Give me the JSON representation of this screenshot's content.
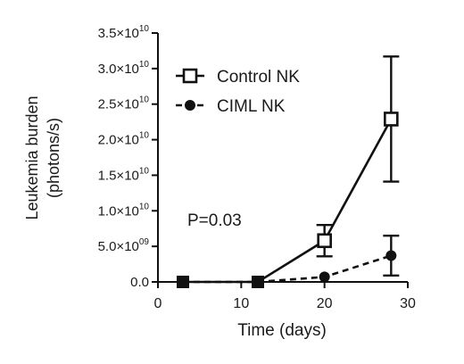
{
  "chart_data": {
    "type": "line",
    "xlabel": "Time (days)",
    "ylabel": "Leukemia burden (photons/s)",
    "ylabel_lines": [
      "Leukemia burden",
      "(photons/s)"
    ],
    "xlim": [
      0,
      30
    ],
    "ylim": [
      0,
      35000000000
    ],
    "x_ticks": [
      0,
      10,
      20,
      30
    ],
    "x_tick_labels": [
      "0",
      "10",
      "20",
      "30"
    ],
    "y_ticks": [
      {
        "value": 0,
        "mantissa": "0.0",
        "exponent": ""
      },
      {
        "value": 5000000000,
        "mantissa": "5.0×10",
        "exponent": "09"
      },
      {
        "value": 10000000000,
        "mantissa": "1.0×10",
        "exponent": "10"
      },
      {
        "value": 15000000000,
        "mantissa": "1.5×10",
        "exponent": "10"
      },
      {
        "value": 20000000000,
        "mantissa": "2.0×10",
        "exponent": "10"
      },
      {
        "value": 25000000000,
        "mantissa": "2.5×10",
        "exponent": "10"
      },
      {
        "value": 30000000000,
        "mantissa": "3.0×10",
        "exponent": "10"
      },
      {
        "value": 35000000000,
        "mantissa": "3.5×10",
        "exponent": "10"
      }
    ],
    "grid": false,
    "legend_position": "top-right",
    "annotation": "P=0.03",
    "series": [
      {
        "name": "Control NK",
        "marker": "open-square",
        "line_style": "solid",
        "color": "#111111",
        "x": [
          3,
          12,
          20,
          28
        ],
        "y": [
          0,
          0,
          5800000000,
          22900000000
        ],
        "err": [
          0,
          0,
          2200000000,
          8800000000
        ]
      },
      {
        "name": "CIML NK",
        "marker": "filled-circle",
        "line_style": "dashed",
        "color": "#111111",
        "x": [
          3,
          12,
          20,
          28
        ],
        "y": [
          0,
          0,
          700000000,
          3700000000
        ],
        "err": [
          0,
          0,
          0,
          2800000000
        ]
      }
    ]
  }
}
